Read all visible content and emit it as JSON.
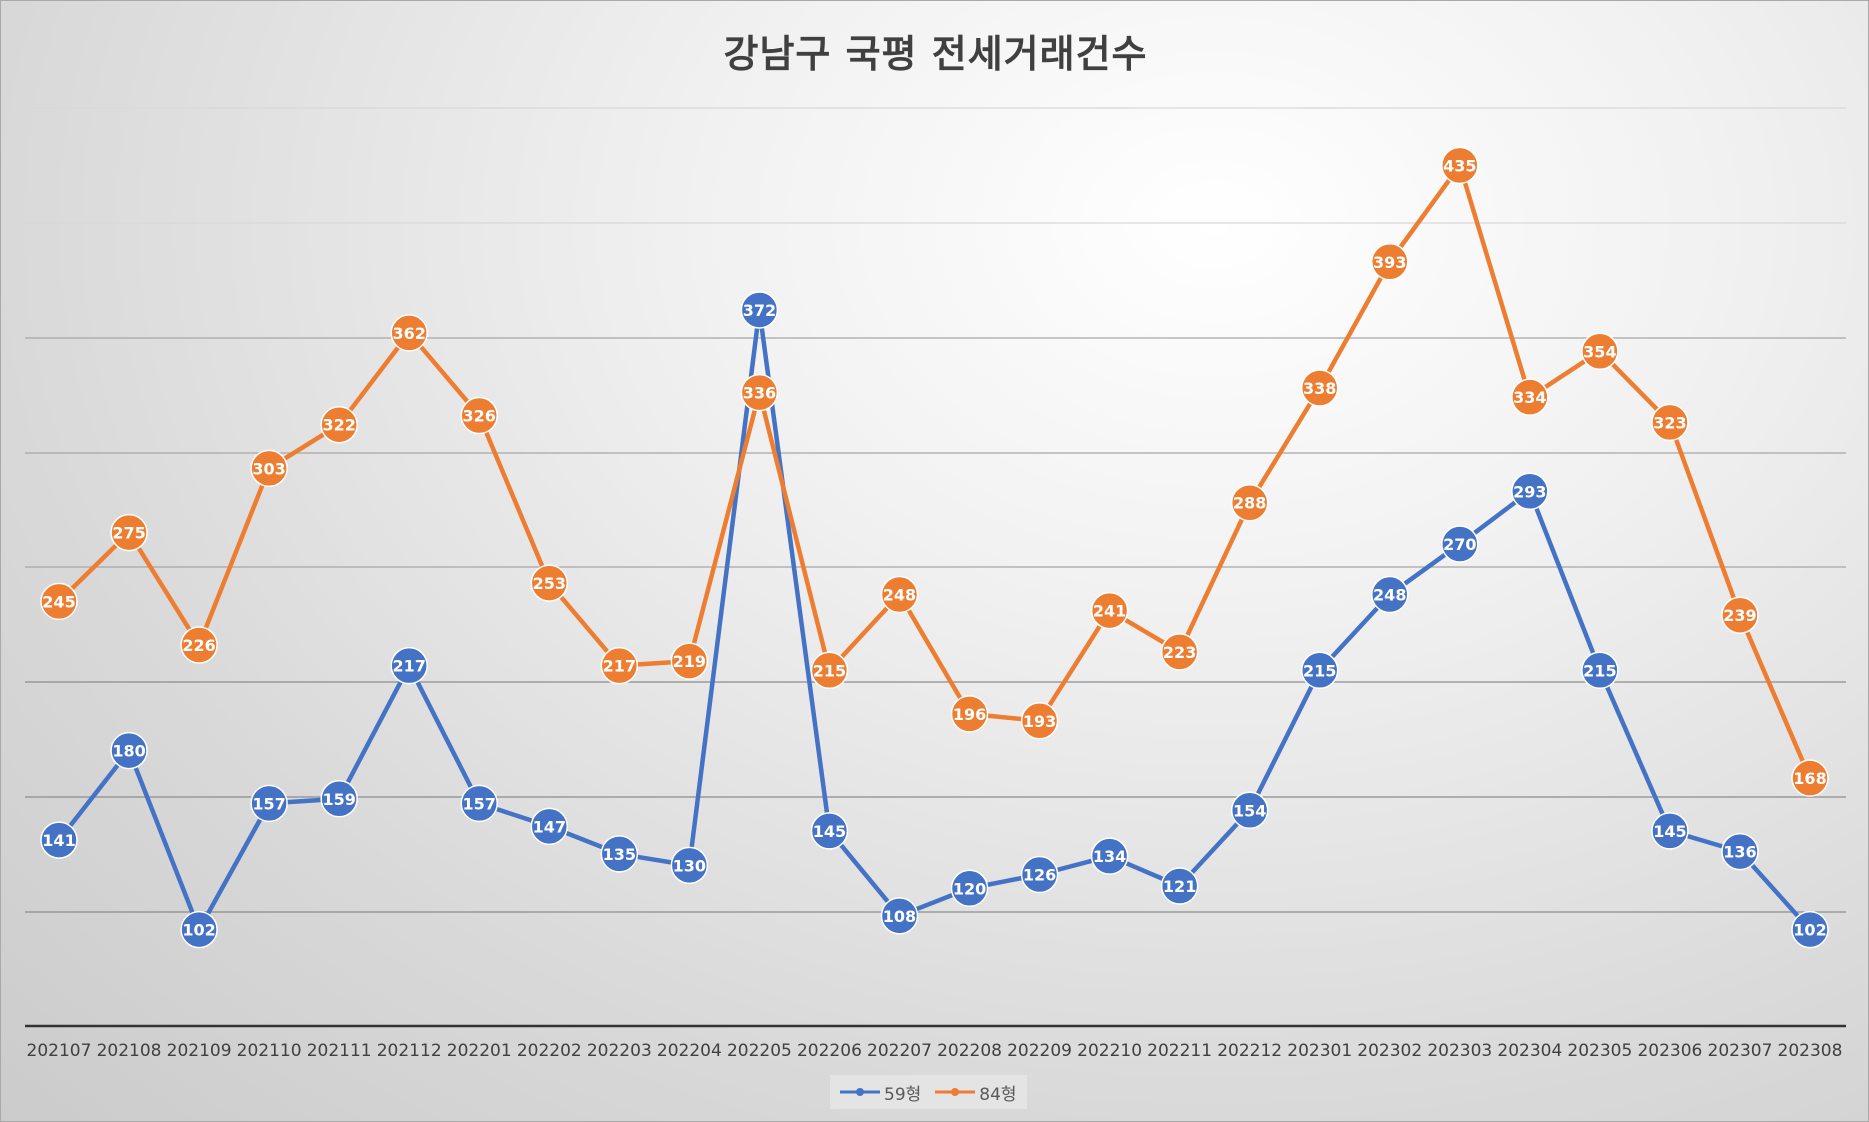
{
  "chart_data": {
    "type": "line",
    "title": "강남구 국평 전세거래건수",
    "xlabel": "",
    "ylabel": "",
    "ylim": [
      60,
      460
    ],
    "grid": true,
    "legend": "bottom",
    "categories": [
      "202107",
      "202108",
      "202109",
      "202110",
      "202111",
      "202112",
      "202201",
      "202202",
      "202203",
      "202204",
      "202205",
      "202206",
      "202207",
      "202208",
      "202209",
      "202210",
      "202211",
      "202212",
      "202301",
      "202302",
      "202303",
      "202304",
      "202305",
      "202306",
      "202307",
      "202308"
    ],
    "series": [
      {
        "name": "59형",
        "color": "#4472C4",
        "values": [
          141,
          180,
          102,
          157,
          159,
          217,
          157,
          147,
          135,
          130,
          372,
          145,
          108,
          120,
          126,
          134,
          121,
          154,
          215,
          248,
          270,
          293,
          215,
          145,
          136,
          102
        ]
      },
      {
        "name": "84형",
        "color": "#ED7D31",
        "values": [
          245,
          275,
          226,
          303,
          322,
          362,
          326,
          253,
          217,
          219,
          336,
          215,
          248,
          196,
          193,
          241,
          223,
          288,
          338,
          393,
          435,
          334,
          354,
          323,
          239,
          168
        ]
      }
    ]
  }
}
